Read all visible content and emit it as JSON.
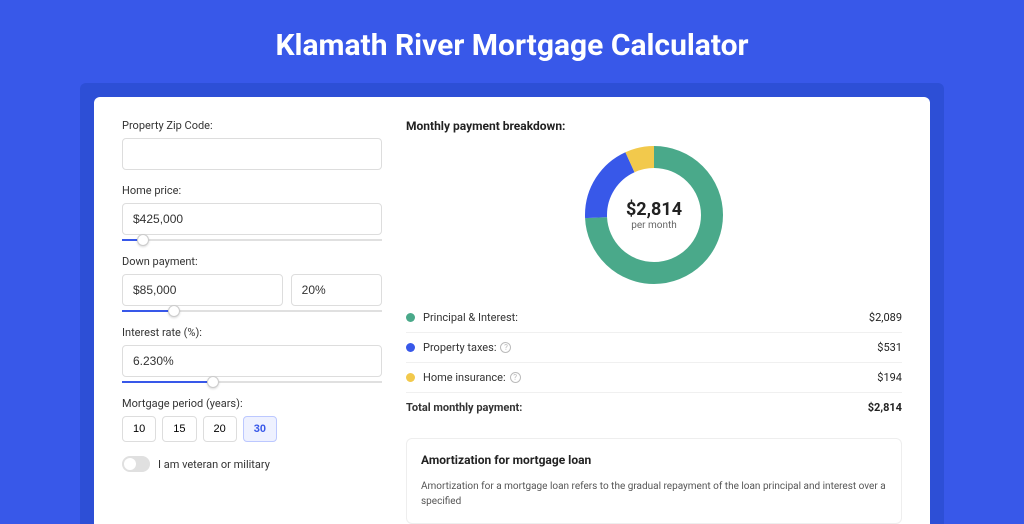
{
  "page": {
    "title": "Klamath River Mortgage Calculator",
    "background_color": "#3858e9",
    "accent_color": "#3858e9"
  },
  "form": {
    "zip": {
      "label": "Property Zip Code:",
      "value": ""
    },
    "home_price": {
      "label": "Home price:",
      "value": "$425,000",
      "slider_pct": 8
    },
    "down_payment": {
      "label": "Down payment:",
      "value": "$85,000",
      "pct_value": "20%",
      "slider_pct": 20
    },
    "interest_rate": {
      "label": "Interest rate (%):",
      "value": "6.230%",
      "slider_pct": 35
    },
    "mortgage_period": {
      "label": "Mortgage period (years):",
      "options": [
        "10",
        "15",
        "20",
        "30"
      ],
      "selected": "30"
    },
    "veteran": {
      "label": "I am veteran or military",
      "checked": false
    }
  },
  "breakdown": {
    "title": "Monthly payment breakdown:",
    "donut": {
      "type": "donut",
      "center_amount": "$2,814",
      "center_sub": "per month",
      "background_color": "#ffffff",
      "stroke_width": 22,
      "radius": 58,
      "slices": [
        {
          "key": "principal_interest",
          "value": 2089,
          "pct": 74.2,
          "color": "#4aa98a"
        },
        {
          "key": "property_taxes",
          "value": 531,
          "pct": 18.9,
          "color": "#3858e9"
        },
        {
          "key": "home_insurance",
          "value": 194,
          "pct": 6.9,
          "color": "#f2c94c"
        }
      ]
    },
    "rows": [
      {
        "dot_color": "#4aa98a",
        "label": "Principal & Interest:",
        "info": false,
        "value": "$2,089"
      },
      {
        "dot_color": "#3858e9",
        "label": "Property taxes:",
        "info": true,
        "value": "$531"
      },
      {
        "dot_color": "#f2c94c",
        "label": "Home insurance:",
        "info": true,
        "value": "$194"
      }
    ],
    "total": {
      "label": "Total monthly payment:",
      "value": "$2,814"
    }
  },
  "amortization": {
    "title": "Amortization for mortgage loan",
    "text": "Amortization for a mortgage loan refers to the gradual repayment of the loan principal and interest over a specified"
  }
}
